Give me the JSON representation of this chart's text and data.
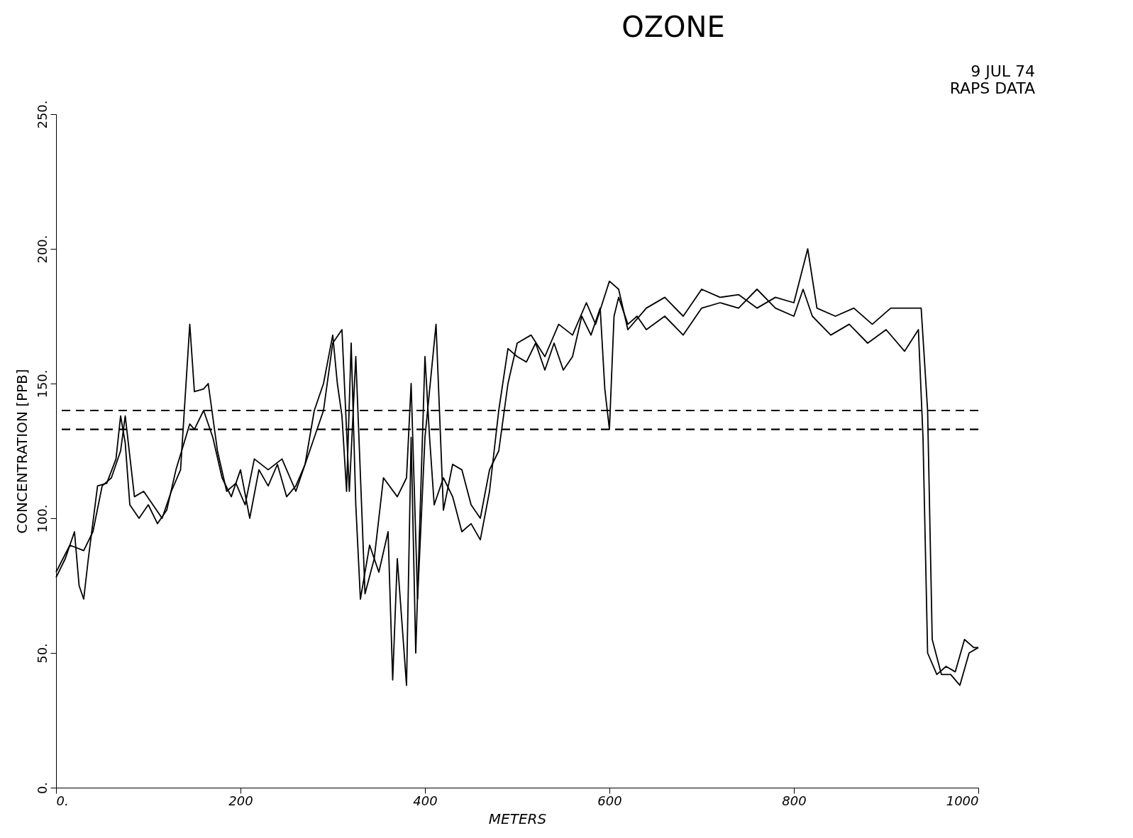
{
  "chart_data": {
    "type": "line",
    "title": "OZONE",
    "annotations": [
      "9 JUL 74",
      "RAPS DATA"
    ],
    "xlabel": "METERS",
    "ylabel": "CONCENTRATION [PPB]",
    "xlim": [
      0,
      1000
    ],
    "ylim": [
      0,
      250
    ],
    "xticks": [
      {
        "value": 0,
        "label": "0."
      },
      200,
      400,
      600,
      800,
      1000
    ],
    "yticks": [
      {
        "value": 0,
        "label": "0."
      },
      {
        "value": 50,
        "label": "50."
      },
      {
        "value": 100,
        "label": "100."
      },
      {
        "value": 150,
        "label": "150."
      },
      {
        "value": 200,
        "label": "200."
      },
      {
        "value": 250,
        "label": "250."
      }
    ],
    "grid": false,
    "legend": false,
    "marker": "none",
    "line_style": "solid",
    "ref_lines": [
      {
        "axis": "y",
        "value": 140,
        "color": "#000000",
        "line_style": "dashed"
      },
      {
        "axis": "y",
        "value": 133,
        "color": "#000000",
        "line_style": "dashed"
      }
    ],
    "series": [
      {
        "color": "#000000",
        "x": [
          0,
          10,
          20,
          25,
          30,
          35,
          45,
          55,
          65,
          70,
          75,
          80,
          90,
          100,
          110,
          120,
          130,
          145,
          150,
          160,
          170,
          180,
          190,
          200,
          210,
          220,
          230,
          240,
          250,
          260,
          270,
          280,
          290,
          300,
          305,
          310,
          315,
          320,
          325,
          330,
          340,
          350,
          360,
          365,
          370,
          380,
          385,
          390,
          400,
          405,
          410,
          420,
          430,
          440,
          450,
          460,
          470,
          480,
          490,
          500,
          510,
          520,
          530,
          540,
          550,
          560,
          570,
          580,
          590,
          595,
          600,
          605,
          610,
          620,
          630,
          640,
          660,
          680,
          700,
          720,
          740,
          760,
          780,
          800,
          810,
          820,
          840,
          860,
          880,
          900,
          920,
          935,
          940,
          945,
          955,
          965,
          975,
          985,
          995,
          1000
        ],
        "values": [
          78,
          85,
          95,
          75,
          70,
          85,
          112,
          113,
          122,
          138,
          128,
          105,
          100,
          105,
          98,
          103,
          118,
          135,
          133,
          140,
          130,
          115,
          108,
          118,
          100,
          118,
          112,
          120,
          108,
          112,
          120,
          140,
          150,
          168,
          150,
          138,
          110,
          165,
          105,
          70,
          90,
          80,
          95,
          40,
          85,
          38,
          130,
          50,
          160,
          130,
          105,
          115,
          108,
          95,
          98,
          92,
          110,
          140,
          163,
          160,
          158,
          165,
          155,
          165,
          155,
          160,
          175,
          168,
          178,
          148,
          133,
          175,
          182,
          172,
          175,
          170,
          175,
          168,
          178,
          180,
          178,
          185,
          178,
          175,
          185,
          175,
          168,
          172,
          165,
          170,
          162,
          170,
          130,
          50,
          42,
          45,
          43,
          55,
          52,
          52
        ]
      },
      {
        "color": "#000000",
        "x": [
          0,
          15,
          30,
          40,
          50,
          60,
          70,
          75,
          85,
          95,
          105,
          115,
          125,
          135,
          145,
          150,
          160,
          165,
          175,
          185,
          195,
          205,
          215,
          230,
          245,
          260,
          275,
          290,
          300,
          310,
          318,
          325,
          335,
          345,
          355,
          370,
          380,
          385,
          392,
          400,
          412,
          420,
          430,
          440,
          450,
          460,
          470,
          480,
          490,
          500,
          515,
          530,
          545,
          560,
          575,
          585,
          600,
          610,
          620,
          640,
          660,
          680,
          700,
          720,
          740,
          760,
          780,
          800,
          815,
          825,
          845,
          865,
          885,
          905,
          925,
          938,
          945,
          950,
          960,
          970,
          980,
          990,
          1000
        ],
        "values": [
          80,
          90,
          88,
          95,
          112,
          115,
          125,
          138,
          108,
          110,
          105,
          100,
          110,
          118,
          172,
          147,
          148,
          150,
          125,
          110,
          113,
          105,
          122,
          118,
          122,
          110,
          125,
          140,
          165,
          170,
          110,
          160,
          72,
          85,
          115,
          108,
          115,
          150,
          70,
          130,
          172,
          103,
          120,
          118,
          105,
          100,
          118,
          125,
          150,
          165,
          168,
          160,
          172,
          168,
          180,
          172,
          188,
          185,
          170,
          178,
          182,
          175,
          185,
          182,
          183,
          178,
          182,
          180,
          200,
          178,
          175,
          178,
          172,
          178,
          178,
          178,
          140,
          55,
          42,
          42,
          38,
          50,
          52
        ]
      }
    ]
  }
}
